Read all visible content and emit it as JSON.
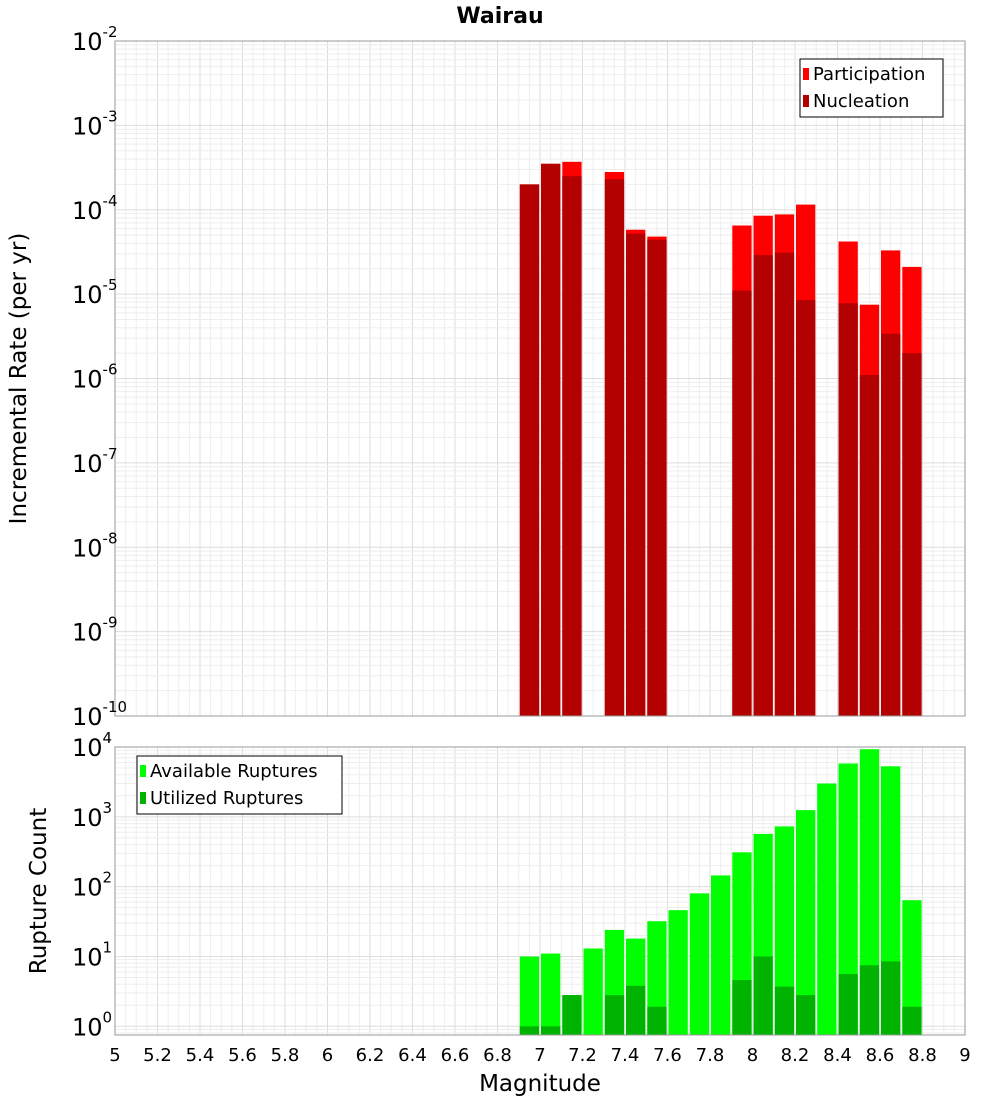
{
  "chart_data": [
    {
      "type": "bar",
      "title": "Wairau",
      "xlabel": "",
      "ylabel": "Incremental Rate (per yr)",
      "yscale": "log",
      "ylim": [
        1e-10,
        0.01
      ],
      "y_ticks": [
        {
          "base": "10",
          "exp": "-2",
          "value": 0.01
        },
        {
          "base": "10",
          "exp": "-3",
          "value": 0.001
        },
        {
          "base": "10",
          "exp": "-4",
          "value": 0.0001
        },
        {
          "base": "10",
          "exp": "-5",
          "value": 1e-05
        },
        {
          "base": "10",
          "exp": "-6",
          "value": 1e-06
        },
        {
          "base": "10",
          "exp": "-7",
          "value": 1e-07
        },
        {
          "base": "10",
          "exp": "-8",
          "value": 1e-08
        },
        {
          "base": "10",
          "exp": "-9",
          "value": 1e-09
        },
        {
          "base": "10",
          "exp": "-10",
          "value": 1e-10
        }
      ],
      "grid": true,
      "legend_position": "top-right",
      "series": [
        {
          "name": "Participation",
          "color": "#ff0000",
          "x": [
            6.95,
            7.05,
            7.15,
            7.35,
            7.45,
            7.55,
            7.95,
            8.05,
            8.15,
            8.25,
            8.45,
            8.55,
            8.65,
            8.75
          ],
          "values": [
            0.0002,
            0.00035,
            0.00037,
            0.00028,
            5.8e-05,
            4.8e-05,
            6.5e-05,
            8.5e-05,
            8.8e-05,
            0.000115,
            4.2e-05,
            7.5e-06,
            3.3e-05,
            2.1e-05
          ]
        },
        {
          "name": "Nucleation",
          "color": "#b30000",
          "x": [
            6.95,
            7.05,
            7.15,
            7.35,
            7.45,
            7.55,
            7.95,
            8.05,
            8.15,
            8.25,
            8.45,
            8.55,
            8.65,
            8.75
          ],
          "values": [
            0.0002,
            0.00035,
            0.00025,
            0.00023,
            5.2e-05,
            4.4e-05,
            1.1e-05,
            2.9e-05,
            3.1e-05,
            8.5e-06,
            7.8e-06,
            1.1e-06,
            3.4e-06,
            2e-06
          ]
        }
      ]
    },
    {
      "type": "bar",
      "title": "",
      "xlabel": "Magnitude",
      "ylabel": "Rupture Count",
      "yscale": "log",
      "ylim": [
        0.75,
        10000
      ],
      "y_ticks": [
        {
          "base": "10",
          "exp": "4",
          "value": 10000
        },
        {
          "base": "10",
          "exp": "3",
          "value": 1000
        },
        {
          "base": "10",
          "exp": "2",
          "value": 100
        },
        {
          "base": "10",
          "exp": "1",
          "value": 10
        },
        {
          "base": "10",
          "exp": "0",
          "value": 1
        }
      ],
      "x_ticks": [
        "5",
        "5.2",
        "5.4",
        "5.6",
        "5.8",
        "6",
        "6.2",
        "6.4",
        "6.6",
        "6.8",
        "7",
        "7.2",
        "7.4",
        "7.6",
        "7.8",
        "8",
        "8.2",
        "8.4",
        "8.6",
        "8.8",
        "9"
      ],
      "xlim": [
        5,
        9
      ],
      "grid": true,
      "legend_position": "top-left",
      "series": [
        {
          "name": "Available Ruptures",
          "color": "#00ff00",
          "x": [
            6.95,
            7.05,
            7.15,
            7.25,
            7.35,
            7.45,
            7.55,
            7.65,
            7.75,
            7.85,
            7.95,
            8.05,
            8.15,
            8.25,
            8.35,
            8.45,
            8.55,
            8.65,
            8.75
          ],
          "values": [
            10,
            11,
            2.8,
            13,
            24,
            18,
            32,
            46,
            80,
            145,
            310,
            570,
            730,
            1250,
            3000,
            5800,
            9300,
            5300,
            64
          ]
        },
        {
          "name": "Utilized Ruptures",
          "color": "#00b300",
          "x": [
            6.95,
            7.05,
            7.15,
            7.25,
            7.35,
            7.45,
            7.55,
            7.65,
            7.75,
            7.85,
            7.95,
            8.05,
            8.15,
            8.25,
            8.35,
            8.45,
            8.55,
            8.65,
            8.75
          ],
          "values": [
            1,
            1,
            2.8,
            0,
            2.8,
            3.8,
            1.9,
            0,
            0,
            0,
            4.6,
            10,
            3.7,
            2.8,
            0,
            5.6,
            7.5,
            8.5,
            1.9
          ]
        }
      ]
    }
  ]
}
